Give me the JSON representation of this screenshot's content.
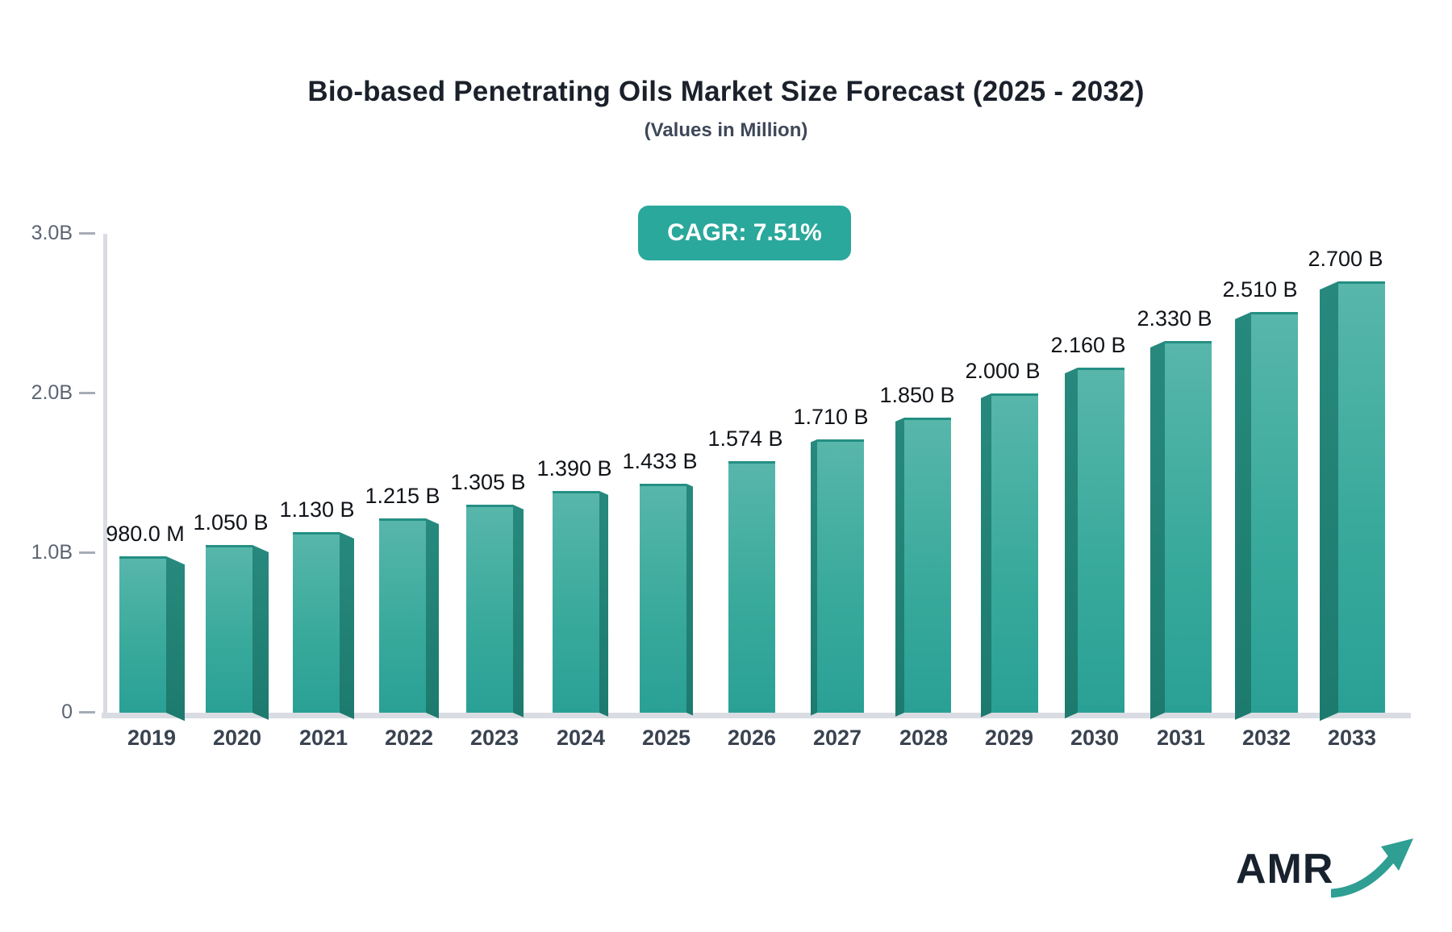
{
  "header": {
    "title": "Bio-based Penetrating Oils Market Size Forecast (2025 - 2032)",
    "subtitle": "(Values in Million)"
  },
  "badge": {
    "label": "CAGR: 7.51%"
  },
  "colors": {
    "badge_bg": "#2aa89b",
    "bar_top": "#58b6ab",
    "bar_bottom": "#2aa095",
    "bar_side_top": "#27897d",
    "bar_side_bottom": "#1d7a6e",
    "axis_line": "#d9dce2",
    "tick_dash": "#a6adb7",
    "y_tick_text": "#5c6573",
    "x_label_text": "#3a4350",
    "value_label_text": "#101419",
    "title_text": "#1b212b",
    "logo_text": "#18222e",
    "logo_arrow": "#2f9e93"
  },
  "chart_data": {
    "type": "bar",
    "title": "Bio-based Penetrating Oils Market Size Forecast (2025 - 2032)",
    "subtitle": "(Values in Million)",
    "cagr": "7.51%",
    "categories": [
      "2019",
      "2020",
      "2021",
      "2022",
      "2023",
      "2024",
      "2025",
      "2026",
      "2027",
      "2028",
      "2029",
      "2030",
      "2031",
      "2032",
      "2033"
    ],
    "values": [
      0.98,
      1.05,
      1.13,
      1.215,
      1.305,
      1.39,
      1.433,
      1.574,
      1.71,
      1.85,
      2.0,
      2.16,
      2.33,
      2.51,
      2.7
    ],
    "point_labels": [
      "980.0 M",
      "1.050 B",
      "1.130 B",
      "1.215 B",
      "1.305 B",
      "1.390 B",
      "1.433 B",
      "1.574 B",
      "1.710 B",
      "1.850 B",
      "2.000 B",
      "2.160 B",
      "2.330 B",
      "2.510 B",
      "2.700 B"
    ],
    "value_unit": "billions",
    "xlabel": "",
    "ylabel": "",
    "ylim": [
      0,
      3.0
    ],
    "y_ticks": [
      {
        "label": "3.0B",
        "value": 3.0
      },
      {
        "label": "2.0B",
        "value": 2.0
      },
      {
        "label": "1.0B",
        "value": 1.0
      },
      {
        "label": "0",
        "value": 0.0
      }
    ],
    "grid": false,
    "legend": false
  },
  "logo": {
    "text": "AMR"
  }
}
